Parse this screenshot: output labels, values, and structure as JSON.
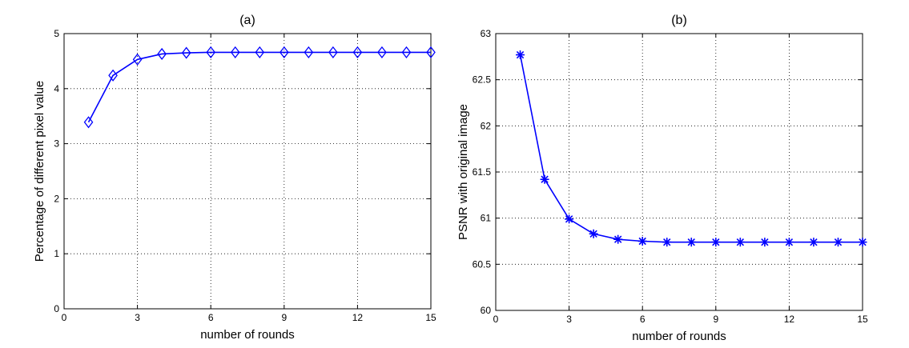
{
  "chart_data": [
    {
      "type": "line",
      "title": "(a)",
      "xlabel": "number of rounds",
      "ylabel": "Percentage of different pixel value",
      "xlim": [
        0,
        15
      ],
      "ylim": [
        0,
        5
      ],
      "xticks": [
        0,
        3,
        6,
        9,
        12,
        15
      ],
      "yticks": [
        0,
        1,
        2,
        3,
        4,
        5
      ],
      "xtick_labels": [
        "0",
        "3",
        "6",
        "9",
        "12",
        "15"
      ],
      "ytick_labels": [
        "0",
        "1",
        "2",
        "3",
        "4",
        "5"
      ],
      "grid": true,
      "marker": "diamond",
      "color": "#0000ff",
      "x": [
        1,
        2,
        3,
        4,
        5,
        6,
        7,
        8,
        9,
        10,
        11,
        12,
        13,
        14,
        15
      ],
      "y": [
        3.39,
        4.24,
        4.53,
        4.63,
        4.65,
        4.66,
        4.66,
        4.66,
        4.66,
        4.66,
        4.66,
        4.66,
        4.66,
        4.66,
        4.66
      ]
    },
    {
      "type": "line",
      "title": "(b)",
      "xlabel": "number of rounds",
      "ylabel": "PSNR with original image",
      "xlim": [
        0,
        15
      ],
      "ylim": [
        60,
        63
      ],
      "xticks": [
        0,
        3,
        6,
        9,
        12,
        15
      ],
      "yticks": [
        60,
        60.5,
        61,
        61.5,
        62,
        62.5,
        63
      ],
      "xtick_labels": [
        "0",
        "3",
        "6",
        "9",
        "12",
        "15"
      ],
      "ytick_labels": [
        "60",
        "60.5",
        "61",
        "61.5",
        "62",
        "62.5",
        "63"
      ],
      "grid": true,
      "marker": "asterisk",
      "color": "#0000ff",
      "x": [
        1,
        2,
        3,
        4,
        5,
        6,
        7,
        8,
        9,
        10,
        11,
        12,
        13,
        14,
        15
      ],
      "y": [
        62.77,
        61.42,
        60.99,
        60.83,
        60.77,
        60.75,
        60.74,
        60.74,
        60.74,
        60.74,
        60.74,
        60.74,
        60.74,
        60.74,
        60.74
      ]
    }
  ]
}
